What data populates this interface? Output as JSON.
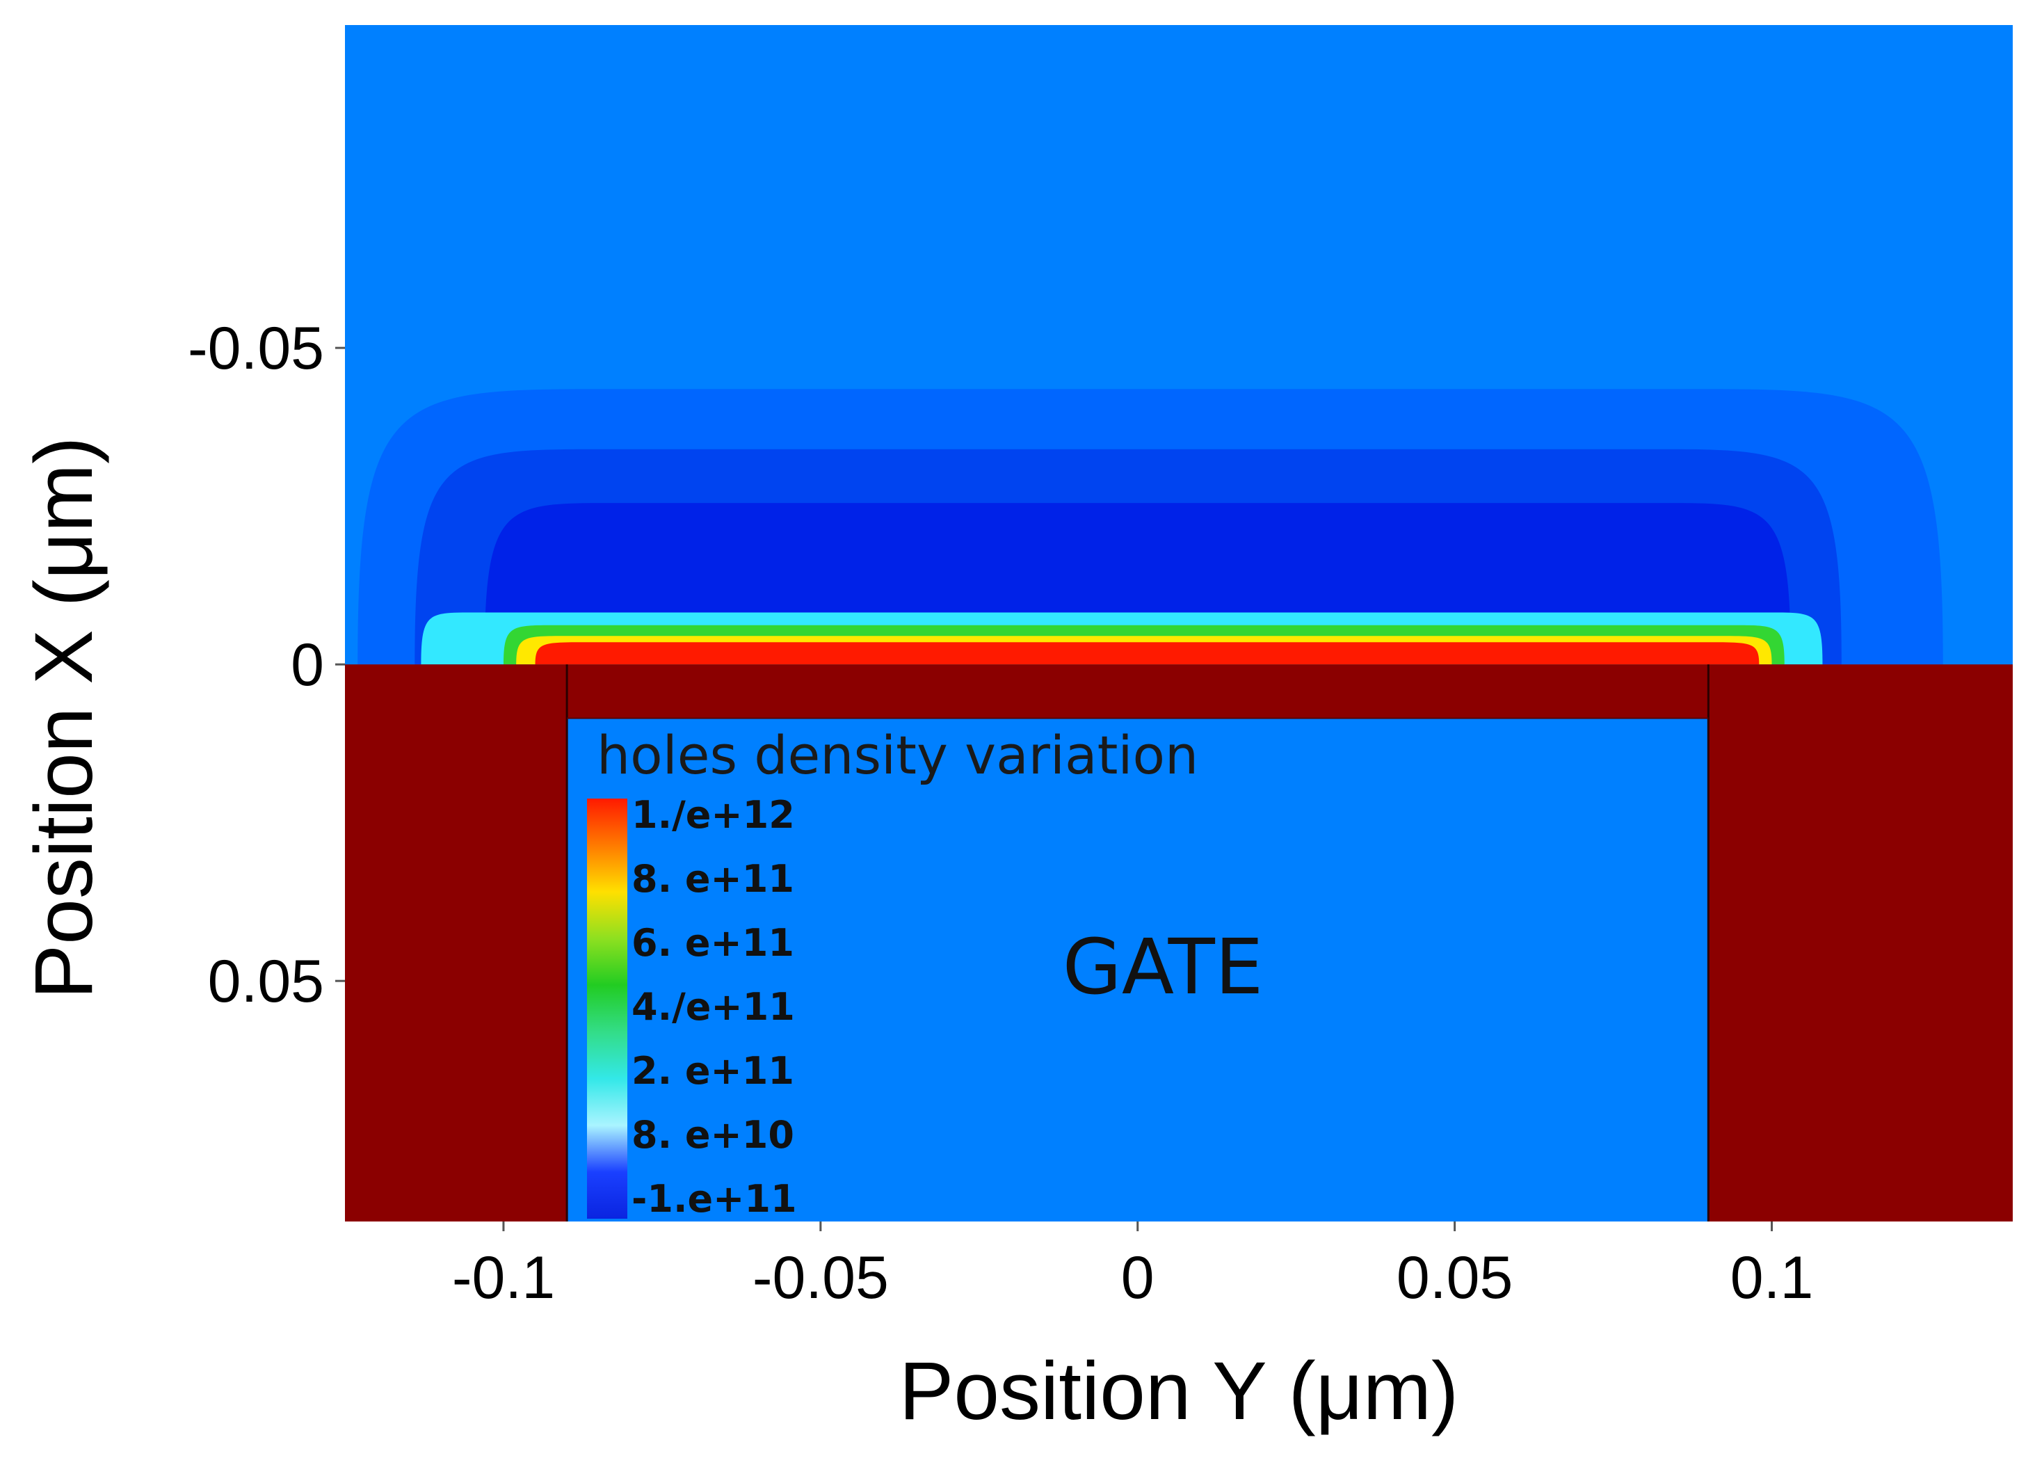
{
  "chart_data": {
    "type": "heatmap",
    "title": "",
    "xlabel": "Position Y (μm)",
    "ylabel": "Position X (μm)",
    "xlim": [
      -0.125,
      0.138
    ],
    "ylim": [
      -0.101,
      0.088
    ],
    "x_ticks": [
      {
        "value": -0.1,
        "label": "-0.1"
      },
      {
        "value": -0.05,
        "label": "-0.05"
      },
      {
        "value": 0,
        "label": "0"
      },
      {
        "value": 0.05,
        "label": "0.05"
      },
      {
        "value": 0.1,
        "label": "0.1"
      }
    ],
    "y_ticks": [
      {
        "value": -0.05,
        "label": "-0.05"
      },
      {
        "value": 0,
        "label": "0"
      },
      {
        "value": 0.05,
        "label": "0.05"
      }
    ],
    "background_color": "#0080ff",
    "contours": [
      {
        "level": "low-1",
        "color": "#0066ff",
        "y_range": [
          -0.123,
          0.127
        ],
        "x_min": -0.0435,
        "x_corner": 0.04
      },
      {
        "level": "low-2",
        "color": "#0044f0",
        "y_range": [
          -0.114,
          0.111
        ],
        "x_min": -0.034,
        "x_corner": 0.03
      },
      {
        "level": "low-3",
        "color": "#0022e8",
        "y_range": [
          -0.103,
          0.103
        ],
        "x_min": -0.0255,
        "x_corner": 0.02
      },
      {
        "level": "cyan",
        "color": "#33e8ff",
        "y_range": [
          -0.113,
          0.108
        ],
        "x_min": -0.0082,
        "x_corner": 0.008
      },
      {
        "level": "green",
        "color": "#33d633",
        "y_range": [
          -0.1,
          0.102
        ],
        "x_min": -0.0062,
        "x_corner": 0.008
      },
      {
        "level": "yellow",
        "color": "#ffe800",
        "y_range": [
          -0.098,
          0.1
        ],
        "x_min": -0.0045,
        "x_corner": 0.008
      },
      {
        "level": "red",
        "color": "#ff1a00",
        "y_range": [
          -0.095,
          0.098
        ],
        "x_min": -0.0035,
        "x_corner": 0.008
      }
    ],
    "regions": [
      {
        "name": "gate-electrode",
        "color": "#8b0000",
        "y_range": [
          -0.125,
          0.138
        ],
        "x_range": [
          0,
          0.088
        ]
      },
      {
        "name": "gate",
        "label": "GATE",
        "color": "#0080ff",
        "y_range": [
          -0.09,
          0.09
        ],
        "x_range": [
          0.0085,
          0.088
        ]
      }
    ],
    "legend": {
      "title": "holes density variation",
      "entries": [
        {
          "label": "1.∕e+12",
          "color": "#ff2200"
        },
        {
          "label": "8. e+11",
          "color": "#ffcc00"
        },
        {
          "label": "6. e+11",
          "color": "#22cc22"
        },
        {
          "label": "4.∕e+11",
          "color": "#44e044"
        },
        {
          "label": "2. e+11",
          "color": "#33eecc"
        },
        {
          "label": "8. e+10",
          "color": "#99f0ff"
        },
        {
          "label": "-1.e+11",
          "color": "#1530ee"
        }
      ],
      "gradient": [
        "#ff1a00",
        "#ff7a00",
        "#ffe000",
        "#8ee020",
        "#22cc22",
        "#33dd88",
        "#33e8e8",
        "#aaf4ff",
        "#1a40ff",
        "#0a24e0"
      ]
    }
  }
}
